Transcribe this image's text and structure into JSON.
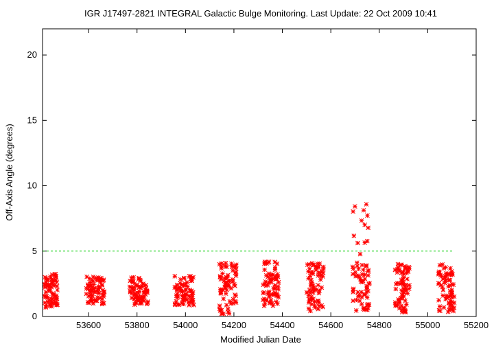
{
  "chart_data": {
    "type": "scatter",
    "title": "IGR J17497-2821   INTEGRAL Galactic Bulge Monitoring.  Last Update: 22 Oct 2009 10:41",
    "xlabel": "Modified Julian Date",
    "ylabel": "Off-Axis Angle (degrees)",
    "xlim": [
      53410,
      55200
    ],
    "ylim": [
      0,
      22
    ],
    "xticks": [
      53600,
      53800,
      54000,
      54200,
      54400,
      54600,
      54800,
      55000,
      55200
    ],
    "yticks": [
      0,
      5,
      10,
      15,
      20
    ],
    "grid": false,
    "legend": "none",
    "marker": "asterisk",
    "colors": {
      "points": "#ff0000",
      "threshold": "#00cc00",
      "axes": "#000000"
    },
    "reference_line": {
      "y": 5,
      "x_range": [
        53410,
        55105
      ],
      "style": "dashed"
    },
    "observation_windows": [
      {
        "x_range": [
          53415,
          53475
        ],
        "y_range": [
          0.7,
          3.3
        ]
      },
      {
        "x_range": [
          53590,
          53665
        ],
        "y_range": [
          0.9,
          3.1
        ]
      },
      {
        "x_range": [
          53770,
          53845
        ],
        "y_range": [
          0.9,
          3.0
        ]
      },
      {
        "x_range": [
          53955,
          54035
        ],
        "y_range": [
          0.8,
          3.1
        ]
      },
      {
        "x_range": [
          54140,
          54210
        ],
        "y_range": [
          0.2,
          4.1
        ]
      },
      {
        "x_range": [
          54320,
          54385
        ],
        "y_range": [
          0.8,
          4.2
        ]
      },
      {
        "x_range": [
          54500,
          54570
        ],
        "y_range": [
          0.3,
          4.1
        ]
      },
      {
        "x_range": [
          54690,
          54760
        ],
        "y_range": [
          0.4,
          8.9
        ]
      },
      {
        "x_range": [
          54865,
          54925
        ],
        "y_range": [
          0.3,
          4.1
        ]
      },
      {
        "x_range": [
          55045,
          55110
        ],
        "y_range": [
          0.3,
          4.0
        ]
      }
    ]
  }
}
